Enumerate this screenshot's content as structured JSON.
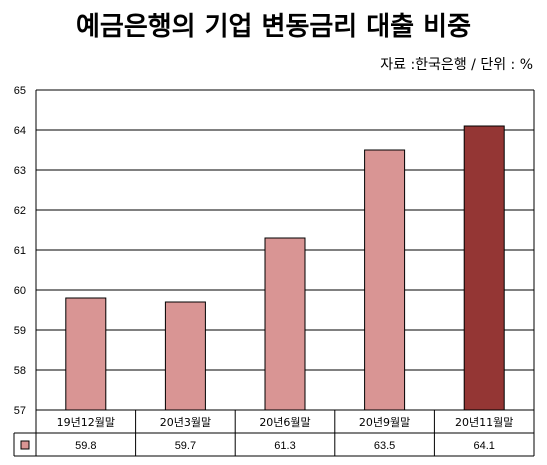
{
  "title": "예금은행의 기업 변동금리 대출 비중",
  "source_note": "자료 :한국은행 / 단위 : %",
  "colors": {
    "bar_default": "#D99594",
    "bar_highlight": "#943634",
    "grid": "#000000",
    "legend_swatch": "#D99594"
  },
  "chart_data": {
    "type": "bar",
    "title": "예금은행의 기업 변동금리 대출 비중",
    "categories": [
      "19년12월말",
      "20년3월말",
      "20년6월말",
      "20년9월말",
      "20년11월말"
    ],
    "values": [
      59.8,
      59.7,
      61.3,
      63.5,
      64.1
    ],
    "value_labels": [
      "59.8",
      "59.7",
      "61.3",
      "63.5",
      "64.1"
    ],
    "highlight_index": 4,
    "ylim": [
      57,
      65
    ],
    "yticks": [
      57,
      58,
      59,
      60,
      61,
      62,
      63,
      64,
      65
    ],
    "grid": true,
    "legend": "data-table"
  }
}
